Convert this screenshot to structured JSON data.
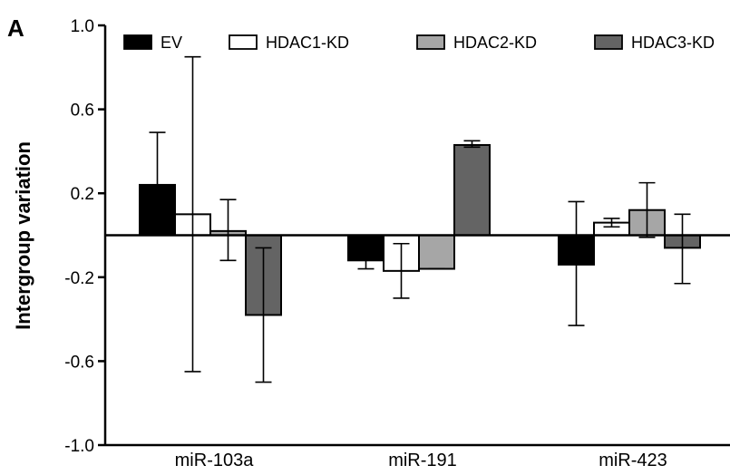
{
  "panel_label": "A",
  "chart_data": {
    "type": "bar",
    "title": "",
    "xlabel": "",
    "ylabel": "Intergroup variation",
    "ylim": [
      -1.0,
      1.0
    ],
    "yticks": [
      1.0,
      0.6,
      0.2,
      -0.2,
      -0.6,
      -1.0
    ],
    "ytick_labels": [
      "1.0",
      "0.6",
      "0.2",
      "-0.2",
      "-0.6",
      "-1.0"
    ],
    "categories": [
      "miR-103a",
      "miR-191",
      "miR-423"
    ],
    "legend_position": "top",
    "series": [
      {
        "name": "EV",
        "color": "#000000",
        "values": [
          0.24,
          -0.12,
          -0.14
        ],
        "error_low": [
          0.0,
          -0.16,
          -0.43
        ],
        "error_high": [
          0.49,
          -0.11,
          0.16
        ]
      },
      {
        "name": "HDAC1-KD",
        "color": "#ffffff",
        "values": [
          0.1,
          -0.17,
          0.06
        ],
        "error_low": [
          -0.65,
          -0.3,
          0.04
        ],
        "error_high": [
          0.85,
          -0.04,
          0.08
        ]
      },
      {
        "name": "HDAC2-KD",
        "color": "#a6a6a6",
        "values": [
          0.02,
          -0.16,
          0.12
        ],
        "error_low": [
          -0.12,
          -0.16,
          -0.01
        ],
        "error_high": [
          0.17,
          -0.16,
          0.25
        ]
      },
      {
        "name": "HDAC3-KD",
        "color": "#646464",
        "values": [
          -0.38,
          0.43,
          -0.06
        ],
        "error_low": [
          -0.7,
          0.42,
          -0.23
        ],
        "error_high": [
          -0.06,
          0.45,
          0.1
        ]
      }
    ]
  }
}
